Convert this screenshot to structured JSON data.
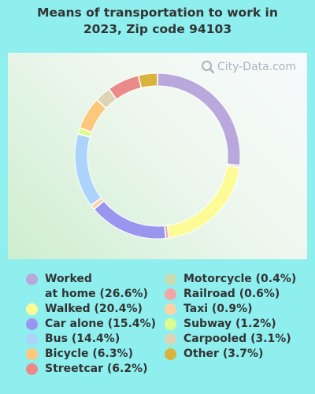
{
  "title_lines": [
    "Means of transportation to work in",
    "2023, Zip code 94103"
  ],
  "watermark": "City-Data.com",
  "chart_data": {
    "type": "pie",
    "title": "Means of transportation to work in 2023, Zip code 94103",
    "donut": true,
    "legend_placement": "bottom",
    "slices": [
      {
        "name": "Worked at home",
        "value": 26.6,
        "label": "Worked\nat home (26.6%)",
        "color": "#b9a8dc"
      },
      {
        "name": "Motorcycle",
        "value": 0.4,
        "label": "Motorcycle (0.4%)",
        "color": "#c9dcb0"
      },
      {
        "name": "Walked",
        "value": 20.4,
        "label": "Walked (20.4%)",
        "color": "#fdfb95"
      },
      {
        "name": "Railroad",
        "value": 0.6,
        "label": "Railroad (0.6%)",
        "color": "#f2a6a6"
      },
      {
        "name": "Car alone",
        "value": 15.4,
        "label": "Car alone (15.4%)",
        "color": "#9a95ee"
      },
      {
        "name": "Taxi",
        "value": 0.9,
        "label": "Taxi (0.9%)",
        "color": "#fbd3a4"
      },
      {
        "name": "Bus",
        "value": 14.4,
        "label": "Bus (14.4%)",
        "color": "#acd4fb"
      },
      {
        "name": "Subway",
        "value": 1.2,
        "label": "Subway (1.2%)",
        "color": "#ddfb90"
      },
      {
        "name": "Bicycle",
        "value": 6.3,
        "label": "Bicycle (6.3%)",
        "color": "#fdc77c"
      },
      {
        "name": "Carpooled",
        "value": 3.1,
        "label": "Carpooled (3.1%)",
        "color": "#dcd4b5"
      },
      {
        "name": "Streetcar",
        "value": 6.2,
        "label": "Streetcar (6.2%)",
        "color": "#ec8a8a"
      },
      {
        "name": "Other",
        "value": 3.7,
        "label": "Other (3.7%)",
        "color": "#d9b33c"
      }
    ]
  },
  "legend": {
    "left": [
      0,
      2,
      4,
      6,
      8,
      10
    ],
    "right": [
      1,
      3,
      5,
      7,
      9,
      11
    ]
  }
}
